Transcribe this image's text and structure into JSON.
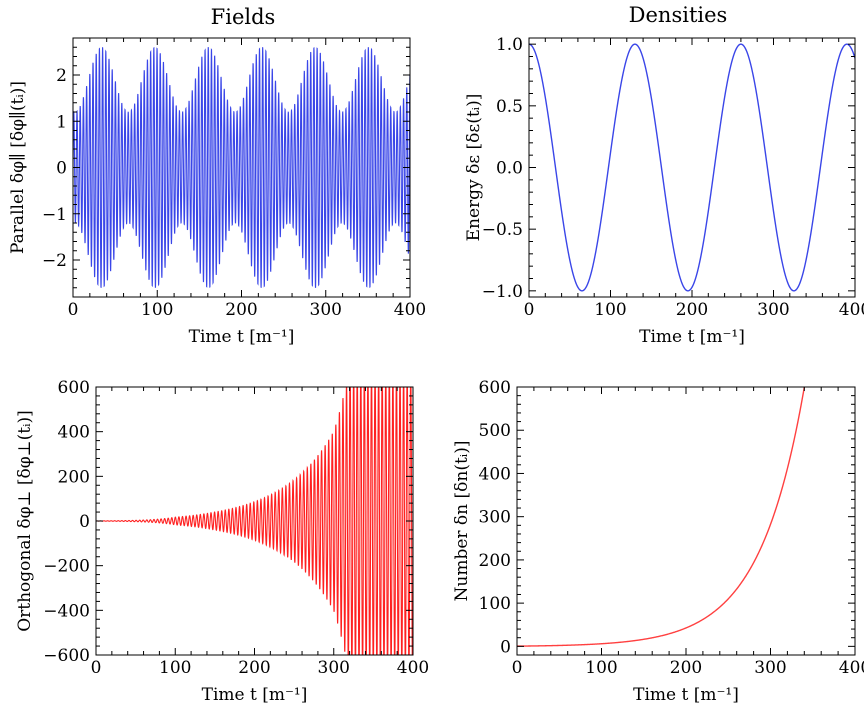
{
  "column_titles": [
    "Fields",
    "Densities"
  ],
  "chart_data": [
    {
      "type": "line",
      "xlabel": "Time  t [m⁻¹]",
      "ylabel": "Parallel  δφ∥ [δφ∥(tᵢ)]",
      "xlim": [
        0,
        400
      ],
      "ylim": [
        -2.8,
        2.8
      ],
      "xticks": [
        0,
        100,
        200,
        300,
        400
      ],
      "yticks": [
        -2,
        -1,
        0,
        1,
        2
      ],
      "grid": false,
      "color": "#3a46e8",
      "series": [
        {
          "description": "fast oscillation (~1 period per 3.8 time units) with amplitude beating between ~1.2 and ~2.6 (beat period ~63)",
          "amplitude_min": 1.2,
          "amplitude_max": 2.6,
          "carrier_period": 3.8,
          "beat_period": 63.4
        }
      ]
    },
    {
      "type": "line",
      "xlabel": "Time  t [m⁻¹]",
      "ylabel": "Energy  δε [δε(tᵢ)]",
      "xlim": [
        0,
        400
      ],
      "ylim": [
        -1.05,
        1.05
      ],
      "xticks": [
        0,
        100,
        200,
        300,
        400
      ],
      "yticks": [
        -1.0,
        -0.5,
        0.0,
        0.5,
        1.0
      ],
      "grid": false,
      "color": "#3a46e8",
      "series": [
        {
          "description": "cosine oscillation",
          "x": [
            0,
            65,
            130,
            195,
            260,
            325,
            390,
            400
          ],
          "y": [
            1.0,
            -1.0,
            1.0,
            -1.0,
            1.0,
            -1.0,
            1.0,
            0.9
          ],
          "period": 130
        }
      ]
    },
    {
      "type": "line",
      "xlabel": "Time  t [m⁻¹]",
      "ylabel": "Orthogonal  δφ⊥ [δφ⊥(tᵢ)]",
      "xlim": [
        0,
        400
      ],
      "ylim": [
        -600,
        600
      ],
      "xticks": [
        0,
        100,
        200,
        300,
        400
      ],
      "yticks": [
        -600,
        -400,
        -200,
        0,
        200,
        400,
        600
      ],
      "grid": false,
      "color": "#ff2020",
      "series": [
        {
          "description": "fast oscillation with exponentially growing envelope, clipped at ±600",
          "envelope_x": [
            0,
            100,
            150,
            200,
            250,
            300,
            320,
            400
          ],
          "envelope_y": [
            0,
            15,
            35,
            75,
            160,
            350,
            600,
            600
          ],
          "carrier_period": 4.5
        }
      ]
    },
    {
      "type": "line",
      "xlabel": "Time  t [m⁻¹]",
      "ylabel": "Number  δn [δn(tᵢ)]",
      "xlim": [
        0,
        400
      ],
      "ylim": [
        -20,
        600
      ],
      "xticks": [
        0,
        100,
        200,
        300,
        400
      ],
      "yticks": [
        0,
        100,
        200,
        300,
        400,
        500,
        600
      ],
      "grid": false,
      "color": "#ff4040",
      "series": [
        {
          "description": "exponential growth",
          "x": [
            0,
            50,
            100,
            150,
            200,
            250,
            300,
            340
          ],
          "y": [
            1,
            3,
            6,
            14,
            40,
            110,
            300,
            600
          ]
        }
      ]
    }
  ]
}
